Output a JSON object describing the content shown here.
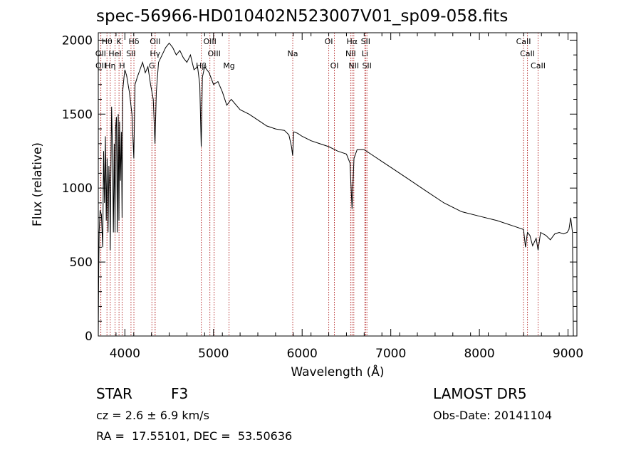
{
  "chart_data": {
    "type": "line",
    "title": "spec-56966-HD010402N523007V01_sp09-058.fits",
    "xlabel": "Wavelength (Å)",
    "ylabel": "Flux (relative)",
    "xlim": [
      3700,
      9100
    ],
    "ylim": [
      0,
      2050
    ],
    "xticks": [
      "4000",
      "5000",
      "6000",
      "7000",
      "8000",
      "9000"
    ],
    "yticks": [
      "0",
      "500",
      "1000",
      "1500",
      "2000"
    ],
    "grid": false,
    "series": [
      {
        "x": [
          3700,
          3705,
          3710,
          3720,
          3735,
          3750,
          3760,
          3770,
          3780,
          3790,
          3800,
          3810,
          3820,
          3830,
          3835,
          3840,
          3850,
          3860,
          3870,
          3880,
          3889,
          3895,
          3905,
          3915,
          3925,
          3933,
          3940,
          3950,
          3960,
          3968,
          3975,
          3990,
          4000,
          4020,
          4050,
          4080,
          4101,
          4115,
          4140,
          4170,
          4200,
          4230,
          4260,
          4290,
          4320,
          4340,
          4355,
          4380,
          4420,
          4460,
          4500,
          4540,
          4580,
          4620,
          4660,
          4700,
          4740,
          4780,
          4820,
          4845,
          4861,
          4875,
          4900,
          4950,
          5000,
          5050,
          5100,
          5150,
          5200,
          5300,
          5400,
          5500,
          5600,
          5700,
          5800,
          5850,
          5880,
          5893,
          5905,
          5950,
          6000,
          6100,
          6200,
          6300,
          6400,
          6450,
          6500,
          6540,
          6563,
          6585,
          6620,
          6700,
          6800,
          6900,
          7000,
          7200,
          7400,
          7600,
          7800,
          8000,
          8200,
          8400,
          8498,
          8520,
          8542,
          8570,
          8600,
          8640,
          8662,
          8690,
          8750,
          8800,
          8850,
          8900,
          8950,
          8990,
          9010,
          9030,
          9050,
          9060
        ],
        "y": [
          0,
          450,
          700,
          850,
          820,
          600,
          1250,
          900,
          1350,
          780,
          1200,
          700,
          1150,
          950,
          580,
          1000,
          1550,
          1250,
          700,
          1300,
          700,
          1400,
          1480,
          700,
          1500,
          780,
          1450,
          1050,
          1380,
          800,
          1650,
          1750,
          1800,
          1760,
          1650,
          1500,
          1200,
          1700,
          1750,
          1800,
          1850,
          1780,
          1820,
          1700,
          1600,
          1300,
          1650,
          1850,
          1900,
          1950,
          1980,
          1950,
          1900,
          1930,
          1880,
          1850,
          1900,
          1800,
          1820,
          1700,
          1280,
          1750,
          1820,
          1780,
          1700,
          1720,
          1650,
          1560,
          1600,
          1530,
          1500,
          1460,
          1420,
          1400,
          1390,
          1360,
          1280,
          1220,
          1380,
          1370,
          1350,
          1320,
          1300,
          1280,
          1250,
          1240,
          1230,
          1170,
          860,
          1200,
          1260,
          1260,
          1220,
          1180,
          1140,
          1060,
          980,
          900,
          840,
          810,
          780,
          740,
          720,
          600,
          700,
          680,
          610,
          660,
          580,
          700,
          680,
          650,
          690,
          700,
          690,
          700,
          720,
          800,
          700,
          0
        ]
      }
    ],
    "line_markers": [
      {
        "label": "Hθ",
        "wl": 3798,
        "row": 0
      },
      {
        "label": "OII",
        "wl": 3727,
        "row": 1
      },
      {
        "label": "OII",
        "wl": 3729,
        "row": 2
      },
      {
        "label": "Hη",
        "wl": 3835,
        "row": 2
      },
      {
        "label": "K",
        "wl": 3934,
        "row": 0
      },
      {
        "label": "HeI",
        "wl": 3889,
        "row": 1
      },
      {
        "label": "H",
        "wl": 3969,
        "row": 2
      },
      {
        "label": "Hδ",
        "wl": 4102,
        "row": 0
      },
      {
        "label": "SII",
        "wl": 4069,
        "row": 1
      },
      {
        "label": "OII",
        "wl": 4341,
        "row": 0
      },
      {
        "label": "Hγ",
        "wl": 4341,
        "row": 1
      },
      {
        "label": "G",
        "wl": 4305,
        "row": 2
      },
      {
        "label": "OIII",
        "wl": 4959,
        "row": 0
      },
      {
        "label": "OIII",
        "wl": 5007,
        "row": 1
      },
      {
        "label": "Hβ",
        "wl": 4862,
        "row": 2
      },
      {
        "label": "Mg",
        "wl": 5175,
        "row": 2
      },
      {
        "label": "Na",
        "wl": 5894,
        "row": 1
      },
      {
        "label": "OI",
        "wl": 6300,
        "row": 0
      },
      {
        "label": "OI",
        "wl": 6364,
        "row": 2
      },
      {
        "label": "Hα",
        "wl": 6563,
        "row": 0
      },
      {
        "label": "NII",
        "wl": 6548,
        "row": 1
      },
      {
        "label": "NII",
        "wl": 6583,
        "row": 2
      },
      {
        "label": "SII",
        "wl": 6716,
        "row": 0
      },
      {
        "label": "Li",
        "wl": 6708,
        "row": 1
      },
      {
        "label": "SII",
        "wl": 6731,
        "row": 2
      },
      {
        "label": "CaII",
        "wl": 8498,
        "row": 0
      },
      {
        "label": "CaII",
        "wl": 8542,
        "row": 1
      },
      {
        "label": "CaII",
        "wl": 8662,
        "row": 2
      }
    ]
  },
  "info": {
    "object_class": "STAR",
    "subclass": "F3",
    "survey": "LAMOST DR5",
    "cz": "cz = 2.6 ± 6.9 km/s",
    "obs_date": "Obs-Date: 20141104",
    "coords": "RA =  17.55101, DEC =  53.50636"
  }
}
